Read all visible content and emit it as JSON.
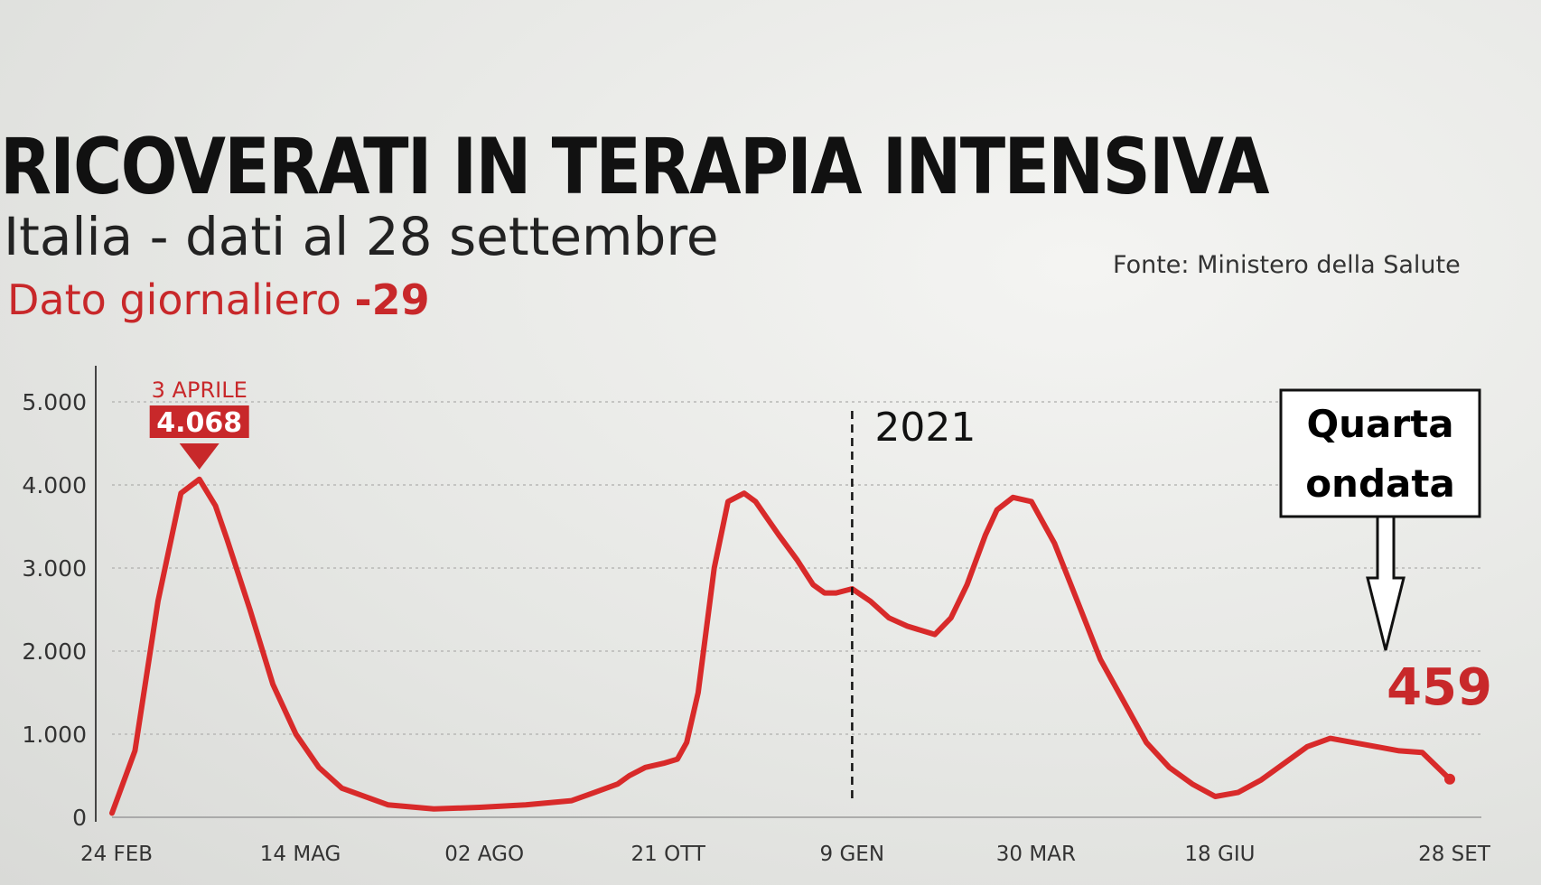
{
  "header": {
    "title": "RICOVERATI IN TERAPIA INTENSIVA",
    "subtitle": "Italia - dati al 28 settembre",
    "daily_label": "Dato giornaliero",
    "daily_value": "-29",
    "source": "Fonte: Ministero della Salute"
  },
  "colors": {
    "line": "#d82a2a",
    "accent": "#c8282a",
    "grid": "#b8b8b6",
    "text": "#222222"
  },
  "chart_data": {
    "type": "line",
    "title": "RICOVERATI IN TERAPIA INTENSIVA",
    "subtitle": "Italia - dati al 28 settembre",
    "ylim": [
      0,
      5000
    ],
    "yticks": [
      0,
      1000,
      2000,
      3000,
      4000,
      5000
    ],
    "ytick_labels": [
      "0",
      "1.000",
      "2.000",
      "3.000",
      "4.000",
      "5.000"
    ],
    "xtick_labels": [
      {
        "label": "24 FEB",
        "day": 0
      },
      {
        "label": "14 MAG",
        "day": 80
      },
      {
        "label": "02 AGO",
        "day": 160
      },
      {
        "label": "21 OTT",
        "day": 240
      },
      {
        "label": "9 GEN",
        "day": 320
      },
      {
        "label": "30 MAR",
        "day": 400
      },
      {
        "label": "18 GIU",
        "day": 480
      },
      {
        "label": "28 SET",
        "day": 582
      }
    ],
    "grid": true,
    "series": [
      {
        "x_days": [
          0,
          10,
          20,
          30,
          38,
          45,
          50,
          60,
          70,
          80,
          90,
          100,
          120,
          140,
          160,
          180,
          200,
          210,
          220,
          225,
          232,
          240,
          246,
          250,
          255,
          262,
          268,
          275,
          280,
          285,
          290,
          298,
          305,
          310,
          315,
          322,
          330,
          338,
          346,
          352,
          358,
          365,
          372,
          380,
          385,
          392,
          400,
          410,
          420,
          430,
          440,
          450,
          460,
          470,
          480,
          490,
          500,
          510,
          520,
          530,
          540,
          550,
          560,
          570,
          582
        ],
        "y": [
          50,
          800,
          2600,
          3900,
          4068,
          3750,
          3350,
          2500,
          1600,
          1000,
          600,
          350,
          150,
          100,
          120,
          150,
          200,
          300,
          400,
          500,
          600,
          650,
          700,
          900,
          1500,
          3000,
          3800,
          3900,
          3800,
          3600,
          3400,
          3100,
          2800,
          2700,
          2700,
          2750,
          2600,
          2400,
          2300,
          2250,
          2200,
          2400,
          2800,
          3400,
          3700,
          3850,
          3800,
          3300,
          2600,
          1900,
          1400,
          900,
          600,
          400,
          250,
          300,
          450,
          650,
          850,
          950,
          900,
          850,
          800,
          780,
          459
        ]
      }
    ],
    "annotations": [
      {
        "label": "3 APRILE",
        "value_label": "4.068",
        "day": 38,
        "value": 4068
      },
      {
        "label": "2021",
        "day": 322
      },
      {
        "label": "459",
        "day": 582,
        "value": 459
      }
    ],
    "callout": {
      "text_line1": "Quarta",
      "text_line2": "ondata"
    }
  }
}
